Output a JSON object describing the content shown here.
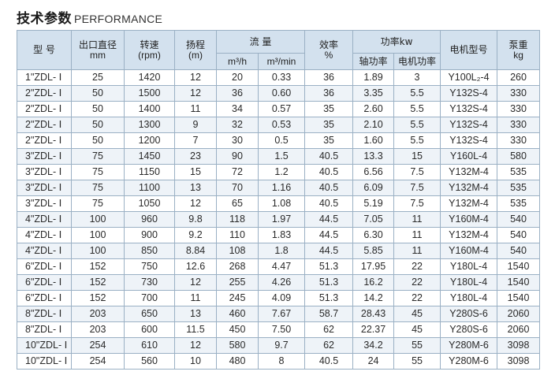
{
  "header": {
    "title_cn": "技术参数",
    "title_en": "PERFORMANCE"
  },
  "columns": {
    "model": "型 号",
    "outlet": "出口直径",
    "outlet_unit": "mm",
    "speed": "转速",
    "speed_unit": "(rpm)",
    "head": "扬程",
    "head_unit": "(m)",
    "flow": "流 量",
    "flow_m3h": "m³/h",
    "flow_m3min": "m³/min",
    "eff": "效率",
    "eff_unit": "%",
    "power": "功率kw",
    "shaft_power": "轴功率",
    "motor_power": "电机功率",
    "motor_model": "电机型号",
    "weight": "泵重",
    "weight_unit": "kg"
  },
  "rows": [
    [
      "1\"ZDL- Ⅰ",
      "25",
      "1420",
      "12",
      "20",
      "0.33",
      "36",
      "1.89",
      "3",
      "Y100L₂-4",
      "260"
    ],
    [
      "2\"ZDL- Ⅰ",
      "50",
      "1500",
      "12",
      "36",
      "0.60",
      "36",
      "3.35",
      "5.5",
      "Y132S-4",
      "330"
    ],
    [
      "2\"ZDL- Ⅰ",
      "50",
      "1400",
      "11",
      "34",
      "0.57",
      "35",
      "2.60",
      "5.5",
      "Y132S-4",
      "330"
    ],
    [
      "2\"ZDL- Ⅰ",
      "50",
      "1300",
      "9",
      "32",
      "0.53",
      "35",
      "2.10",
      "5.5",
      "Y132S-4",
      "330"
    ],
    [
      "2\"ZDL- Ⅰ",
      "50",
      "1200",
      "7",
      "30",
      "0.5",
      "35",
      "1.60",
      "5.5",
      "Y132S-4",
      "330"
    ],
    [
      "3\"ZDL- Ⅰ",
      "75",
      "1450",
      "23",
      "90",
      "1.5",
      "40.5",
      "13.3",
      "15",
      "Y160L-4",
      "580"
    ],
    [
      "3\"ZDL- Ⅰ",
      "75",
      "1150",
      "15",
      "72",
      "1.2",
      "40.5",
      "6.56",
      "7.5",
      "Y132M-4",
      "535"
    ],
    [
      "3\"ZDL- Ⅰ",
      "75",
      "1100",
      "13",
      "70",
      "1.16",
      "40.5",
      "6.09",
      "7.5",
      "Y132M-4",
      "535"
    ],
    [
      "3\"ZDL- Ⅰ",
      "75",
      "1050",
      "12",
      "65",
      "1.08",
      "40.5",
      "5.19",
      "7.5",
      "Y132M-4",
      "535"
    ],
    [
      "4\"ZDL- Ⅰ",
      "100",
      "960",
      "9.8",
      "118",
      "1.97",
      "44.5",
      "7.05",
      "11",
      "Y160M-4",
      "540"
    ],
    [
      "4\"ZDL- Ⅰ",
      "100",
      "900",
      "9.2",
      "110",
      "1.83",
      "44.5",
      "6.30",
      "11",
      "Y132M-4",
      "540"
    ],
    [
      "4\"ZDL- Ⅰ",
      "100",
      "850",
      "8.84",
      "108",
      "1.8",
      "44.5",
      "5.85",
      "11",
      "Y160M-4",
      "540"
    ],
    [
      "6\"ZDL- Ⅰ",
      "152",
      "750",
      "12.6",
      "268",
      "4.47",
      "51.3",
      "17.95",
      "22",
      "Y180L-4",
      "1540"
    ],
    [
      "6\"ZDL- Ⅰ",
      "152",
      "730",
      "12",
      "255",
      "4.26",
      "51.3",
      "16.2",
      "22",
      "Y180L-4",
      "1540"
    ],
    [
      "6\"ZDL- Ⅰ",
      "152",
      "700",
      "11",
      "245",
      "4.09",
      "51.3",
      "14.2",
      "22",
      "Y180L-4",
      "1540"
    ],
    [
      "8\"ZDL- Ⅰ",
      "203",
      "650",
      "13",
      "460",
      "7.67",
      "58.7",
      "28.43",
      "45",
      "Y280S-6",
      "2060"
    ],
    [
      "8\"ZDL- Ⅰ",
      "203",
      "600",
      "11.5",
      "450",
      "7.50",
      "62",
      "22.37",
      "45",
      "Y280S-6",
      "2060"
    ],
    [
      "10\"ZDL- Ⅰ",
      "254",
      "610",
      "12",
      "580",
      "9.7",
      "62",
      "34.2",
      "55",
      "Y280M-6",
      "3098"
    ],
    [
      "10\"ZDL- Ⅰ",
      "254",
      "560",
      "10",
      "480",
      "8",
      "40.5",
      "24",
      "55",
      "Y280M-6",
      "3098"
    ]
  ]
}
